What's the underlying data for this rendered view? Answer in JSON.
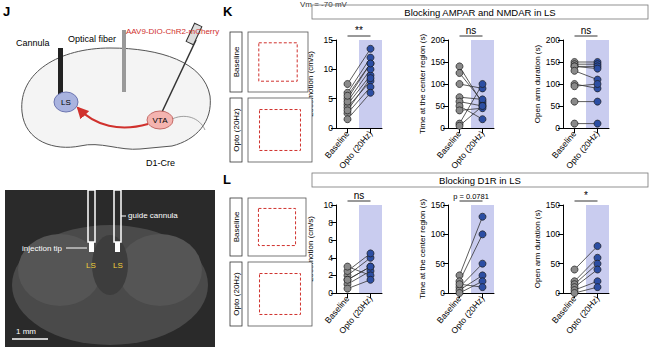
{
  "figure": {
    "top_text": "Vm = -70 mV",
    "panel_j": {
      "letter": "J",
      "cannula": "Cannula",
      "fiber": "Optical fiber",
      "virus": "AAV9-DIO-ChR2-mCherry",
      "ls": "LS",
      "vta": "VTA",
      "mouse": "D1-Cre",
      "guide": "guide cannula",
      "tip": "injection tip",
      "ls_left": "LS",
      "ls_right": "LS",
      "scale": "1 mm"
    },
    "panels": [
      {
        "letter": "K",
        "title": "Blocking AMPAR and NMDAR in LS",
        "track_labels": [
          "Baseline",
          "Opto (20Hz)"
        ]
      },
      {
        "letter": "L",
        "title": "Blocking D1R in LS",
        "track_labels": [
          "Baseline",
          "Opto (20Hz)"
        ]
      }
    ]
  },
  "chart_data": [
    {
      "type": "line",
      "marker": "circle",
      "categories": [
        "Baseline",
        "Opto (20Hz)"
      ],
      "colors": [
        "#8a8a8a",
        "#2c4ea3"
      ],
      "ylabel": "Locomotion (cm/s)",
      "ylim": [
        0,
        15
      ],
      "yticks": [
        0,
        5,
        10,
        15
      ],
      "annotation": "**",
      "series": [
        {
          "values": [
            5,
            11
          ]
        },
        {
          "values": [
            4,
            9
          ]
        },
        {
          "values": [
            3.5,
            8
          ]
        },
        {
          "values": [
            6,
            12
          ]
        },
        {
          "values": [
            2.5,
            7
          ]
        },
        {
          "values": [
            3,
            8.5
          ]
        },
        {
          "values": [
            4.5,
            10
          ]
        },
        {
          "values": [
            7.5,
            13.5
          ]
        },
        {
          "values": [
            1.5,
            6
          ]
        },
        {
          "values": [
            5.5,
            11
          ]
        }
      ]
    },
    {
      "type": "line",
      "marker": "circle",
      "categories": [
        "Baseline",
        "Opto (20Hz)"
      ],
      "colors": [
        "#8a8a8a",
        "#2c4ea3"
      ],
      "ylabel": "Time at the center region (s)",
      "ylim": [
        0,
        200
      ],
      "yticks": [
        0,
        50,
        100,
        150,
        200
      ],
      "annotation": "ns",
      "series": [
        {
          "values": [
            140,
            55
          ]
        },
        {
          "values": [
            125,
            60
          ]
        },
        {
          "values": [
            100,
            90
          ]
        },
        {
          "values": [
            70,
            65
          ]
        },
        {
          "values": [
            60,
            50
          ]
        },
        {
          "values": [
            50,
            20
          ]
        },
        {
          "values": [
            40,
            45
          ]
        },
        {
          "values": [
            10,
            100
          ]
        },
        {
          "values": [
            5,
            50
          ]
        }
      ]
    },
    {
      "type": "line",
      "marker": "circle",
      "categories": [
        "Baseline",
        "Opto (20Hz)"
      ],
      "colors": [
        "#8a8a8a",
        "#2c4ea3"
      ],
      "ylabel": "Open arm duration (s)",
      "ylim": [
        0,
        200
      ],
      "yticks": [
        0,
        50,
        100,
        150,
        200
      ],
      "annotation": "ns",
      "series": [
        {
          "values": [
            150,
            150
          ]
        },
        {
          "values": [
            145,
            145
          ]
        },
        {
          "values": [
            140,
            140
          ]
        },
        {
          "values": [
            140,
            135
          ]
        },
        {
          "values": [
            130,
            110
          ]
        },
        {
          "values": [
            100,
            90
          ]
        },
        {
          "values": [
            95,
            100
          ]
        },
        {
          "values": [
            60,
            60
          ]
        },
        {
          "values": [
            10,
            10
          ]
        }
      ]
    },
    {
      "type": "line",
      "marker": "circle",
      "categories": [
        "Baseline",
        "Opto (20Hz)"
      ],
      "colors": [
        "#8a8a8a",
        "#2c4ea3"
      ],
      "ylabel": "Locomotion (cm/s)",
      "ylim": [
        0,
        10
      ],
      "yticks": [
        0,
        2,
        4,
        6,
        8,
        10
      ],
      "annotation": "ns",
      "series": [
        {
          "values": [
            2,
            4
          ]
        },
        {
          "values": [
            1.5,
            3
          ]
        },
        {
          "values": [
            1,
            2.5
          ]
        },
        {
          "values": [
            2.5,
            4.5
          ]
        },
        {
          "values": [
            3,
            2
          ]
        },
        {
          "values": [
            0.5,
            1.5
          ]
        },
        {
          "values": [
            1.5,
            3
          ]
        }
      ]
    },
    {
      "type": "line",
      "marker": "circle",
      "categories": [
        "Baseline",
        "Opto (20Hz)"
      ],
      "colors": [
        "#8a8a8a",
        "#2c4ea3"
      ],
      "ylabel": "Time at the center region (s)",
      "ylim": [
        0,
        150
      ],
      "yticks": [
        0,
        50,
        100,
        150
      ],
      "annotation": "p = 0.0781",
      "series": [
        {
          "values": [
            30,
            130
          ]
        },
        {
          "values": [
            20,
            100
          ]
        },
        {
          "values": [
            10,
            50
          ]
        },
        {
          "values": [
            5,
            30
          ]
        },
        {
          "values": [
            0,
            20
          ]
        },
        {
          "values": [
            15,
            10
          ]
        }
      ]
    },
    {
      "type": "line",
      "marker": "circle",
      "categories": [
        "Baseline",
        "Opto (20Hz)"
      ],
      "colors": [
        "#8a8a8a",
        "#2c4ea3"
      ],
      "ylabel": "Open arm duration (s)",
      "ylim": [
        0,
        150
      ],
      "yticks": [
        0,
        50,
        100,
        150
      ],
      "annotation": "*",
      "series": [
        {
          "values": [
            40,
            80
          ]
        },
        {
          "values": [
            20,
            60
          ]
        },
        {
          "values": [
            15,
            50
          ]
        },
        {
          "values": [
            10,
            40
          ]
        },
        {
          "values": [
            5,
            20
          ]
        },
        {
          "values": [
            0,
            10
          ]
        }
      ]
    }
  ]
}
